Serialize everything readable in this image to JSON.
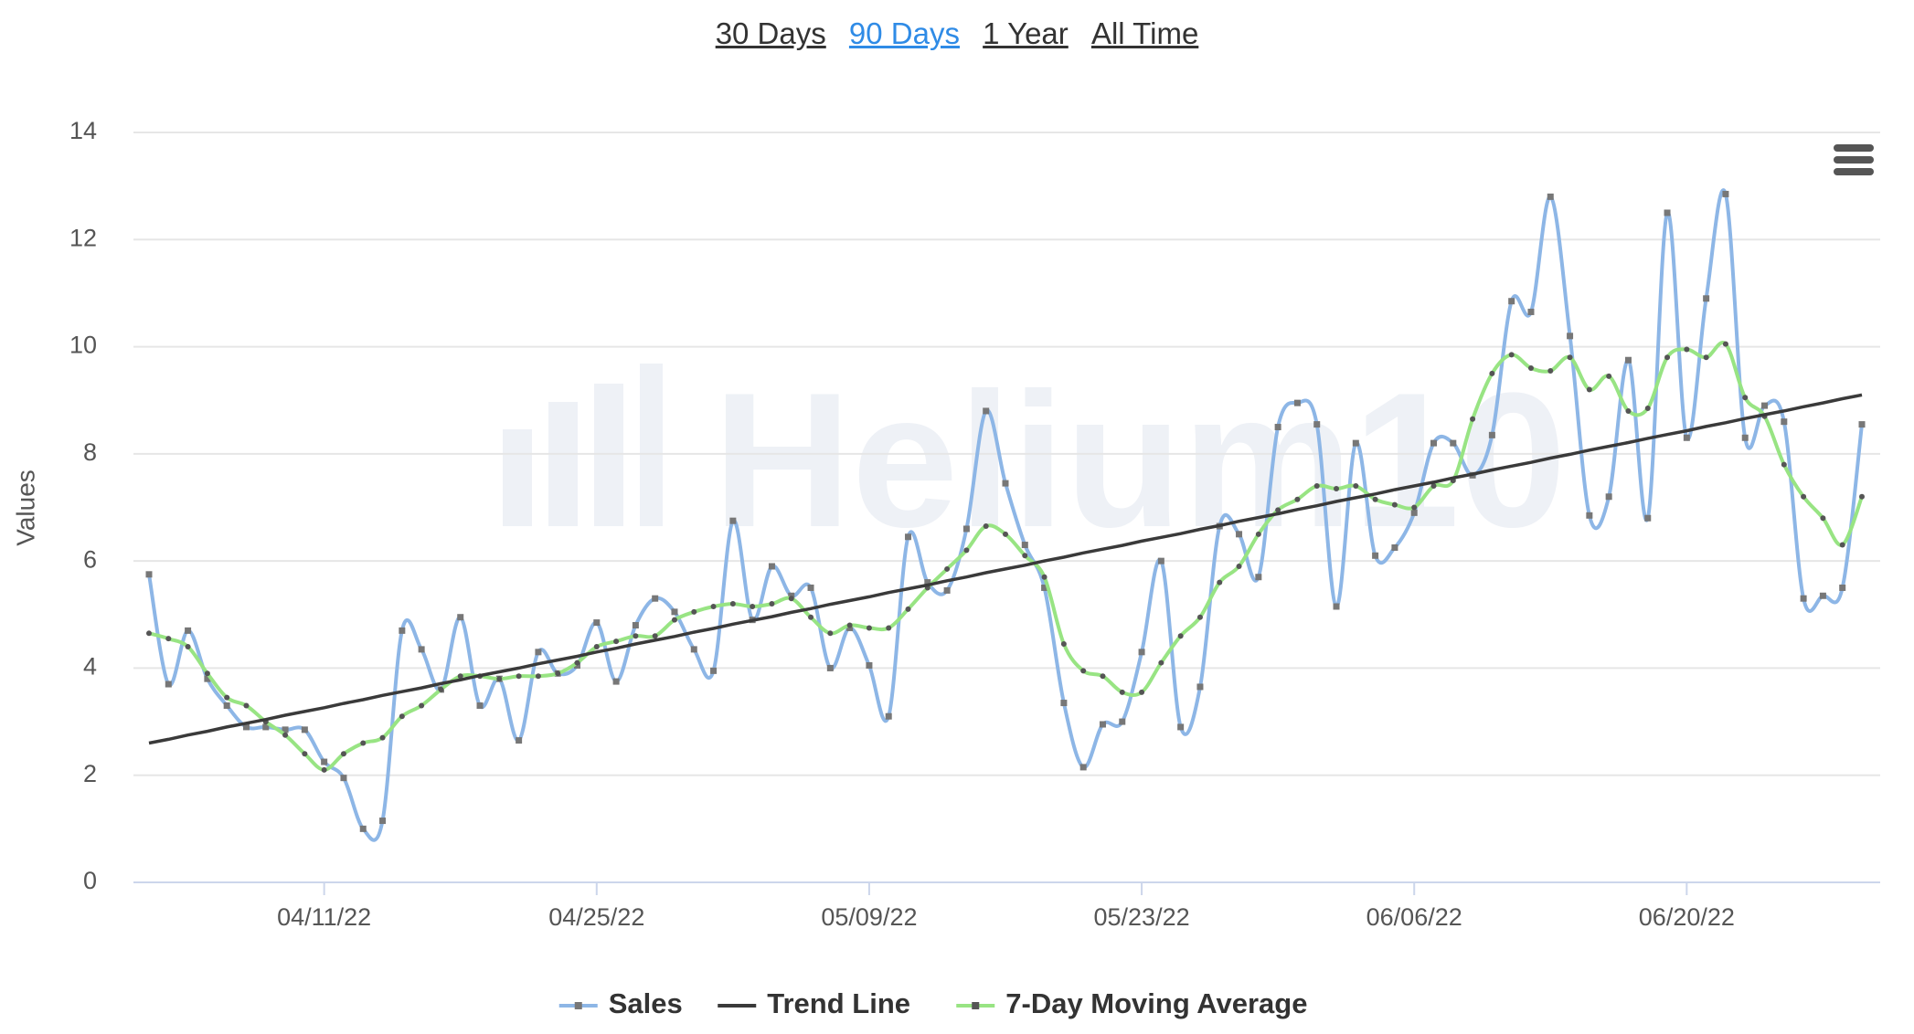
{
  "range_buttons": [
    "30 Days",
    "90 Days",
    "1 Year",
    "All Time"
  ],
  "active_range": "90 Days",
  "watermark": "Helium10",
  "chart_data": {
    "type": "line",
    "y_label": "Values",
    "x": [
      "04/02/22",
      "04/03/22",
      "04/04/22",
      "04/05/22",
      "04/06/22",
      "04/07/22",
      "04/08/22",
      "04/09/22",
      "04/10/22",
      "04/11/22",
      "04/12/22",
      "04/13/22",
      "04/14/22",
      "04/15/22",
      "04/16/22",
      "04/17/22",
      "04/18/22",
      "04/19/22",
      "04/20/22",
      "04/21/22",
      "04/22/22",
      "04/23/22",
      "04/24/22",
      "04/25/22",
      "04/26/22",
      "04/27/22",
      "04/28/22",
      "04/29/22",
      "04/30/22",
      "05/01/22",
      "05/02/22",
      "05/03/22",
      "05/04/22",
      "05/05/22",
      "05/06/22",
      "05/07/22",
      "05/08/22",
      "05/09/22",
      "05/10/22",
      "05/11/22",
      "05/12/22",
      "05/13/22",
      "05/14/22",
      "05/15/22",
      "05/16/22",
      "05/17/22",
      "05/18/22",
      "05/19/22",
      "05/20/22",
      "05/21/22",
      "05/22/22",
      "05/23/22",
      "05/24/22",
      "05/25/22",
      "05/26/22",
      "05/27/22",
      "05/28/22",
      "05/29/22",
      "05/30/22",
      "05/31/22",
      "06/01/22",
      "06/02/22",
      "06/03/22",
      "06/04/22",
      "06/05/22",
      "06/06/22",
      "06/07/22",
      "06/08/22",
      "06/09/22",
      "06/10/22",
      "06/11/22",
      "06/12/22",
      "06/13/22",
      "06/14/22",
      "06/15/22",
      "06/16/22",
      "06/17/22",
      "06/18/22",
      "06/19/22",
      "06/20/22",
      "06/21/22",
      "06/22/22",
      "06/23/22",
      "06/24/22",
      "06/25/22",
      "06/26/22",
      "06/27/22",
      "06/28/22",
      "06/29/22"
    ],
    "xticks": [
      "04/11/22",
      "04/25/22",
      "05/09/22",
      "05/23/22",
      "06/06/22",
      "06/20/22"
    ],
    "ylim": [
      0,
      14
    ],
    "yticks": [
      0,
      2,
      4,
      6,
      8,
      10,
      12,
      14
    ],
    "grid": true,
    "legend": "bottom",
    "series": [
      {
        "name": "Sales",
        "color": "#8db6e6",
        "marker": true,
        "smooth": true,
        "values": [
          5.75,
          3.7,
          4.7,
          3.8,
          3.3,
          2.9,
          2.9,
          2.85,
          2.85,
          2.25,
          1.95,
          1.0,
          1.15,
          4.7,
          4.35,
          3.6,
          4.95,
          3.3,
          3.8,
          2.65,
          4.3,
          3.9,
          4.05,
          4.85,
          3.75,
          4.8,
          5.3,
          5.05,
          4.35,
          3.95,
          6.75,
          4.9,
          5.9,
          5.35,
          5.5,
          4.0,
          4.75,
          4.05,
          3.1,
          6.45,
          5.6,
          5.45,
          6.6,
          8.8,
          7.45,
          6.3,
          5.5,
          3.35,
          2.15,
          2.95,
          3.0,
          4.3,
          6.0,
          2.9,
          3.65,
          6.65,
          6.5,
          5.7,
          8.5,
          8.95,
          8.55,
          5.15,
          8.2,
          6.1,
          6.25,
          6.9,
          8.2,
          8.2,
          7.6,
          8.35,
          10.85,
          10.65,
          12.8,
          10.2,
          6.85,
          7.2,
          9.75,
          6.8,
          12.5,
          8.3,
          10.9,
          12.85,
          8.3,
          8.9,
          8.6,
          5.3,
          5.35,
          5.5,
          8.55
        ]
      },
      {
        "name": "Trend Line",
        "color": "#3a3a3a",
        "marker": false,
        "smooth": false,
        "values": [
          2.6,
          2.67,
          2.75,
          2.82,
          2.9,
          2.97,
          3.04,
          3.12,
          3.19,
          3.26,
          3.34,
          3.41,
          3.49,
          3.56,
          3.63,
          3.71,
          3.78,
          3.86,
          3.93,
          4.0,
          4.08,
          4.15,
          4.22,
          4.3,
          4.37,
          4.45,
          4.52,
          4.59,
          4.67,
          4.74,
          4.82,
          4.89,
          4.96,
          5.04,
          5.11,
          5.19,
          5.26,
          5.33,
          5.41,
          5.48,
          5.55,
          5.63,
          5.7,
          5.78,
          5.85,
          5.92,
          6.0,
          6.07,
          6.15,
          6.22,
          6.29,
          6.37,
          6.44,
          6.51,
          6.59,
          6.66,
          6.74,
          6.81,
          6.88,
          6.96,
          7.03,
          7.11,
          7.18,
          7.25,
          7.33,
          7.4,
          7.47,
          7.55,
          7.62,
          7.7,
          7.77,
          7.84,
          7.92,
          7.99,
          8.07,
          8.14,
          8.21,
          8.29,
          8.36,
          8.43,
          8.51,
          8.58,
          8.66,
          8.73,
          8.8,
          8.88,
          8.95,
          9.03,
          9.1
        ]
      },
      {
        "name": "7-Day Moving Average",
        "color": "#98e483",
        "marker": true,
        "smooth": true,
        "values": [
          4.65,
          4.55,
          4.4,
          3.9,
          3.45,
          3.3,
          3.0,
          2.75,
          2.4,
          2.1,
          2.4,
          2.6,
          2.7,
          3.1,
          3.3,
          3.6,
          3.85,
          3.85,
          3.8,
          3.85,
          3.85,
          3.9,
          4.1,
          4.4,
          4.5,
          4.6,
          4.6,
          4.9,
          5.05,
          5.15,
          5.2,
          5.15,
          5.2,
          5.3,
          4.95,
          4.65,
          4.8,
          4.75,
          4.75,
          5.1,
          5.5,
          5.85,
          6.2,
          6.65,
          6.5,
          6.1,
          5.7,
          4.45,
          3.95,
          3.85,
          3.55,
          3.55,
          4.1,
          4.6,
          4.95,
          5.6,
          5.9,
          6.5,
          6.95,
          7.15,
          7.4,
          7.35,
          7.4,
          7.15,
          7.05,
          7.0,
          7.4,
          7.5,
          8.65,
          9.5,
          9.85,
          9.6,
          9.55,
          9.8,
          9.2,
          9.45,
          8.8,
          8.85,
          9.8,
          9.95,
          9.8,
          10.05,
          9.05,
          8.7,
          7.8,
          7.2,
          6.8,
          6.3,
          7.2
        ]
      }
    ]
  }
}
